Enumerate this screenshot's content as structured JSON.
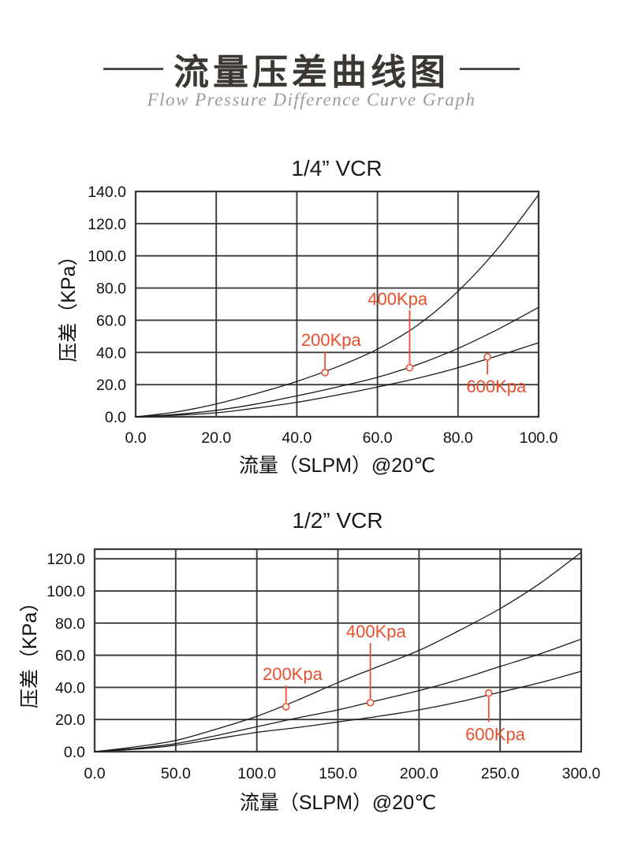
{
  "header": {
    "title": "流量压差曲线图",
    "subtitle": "Flow Pressure Difference Curve Graph",
    "title_color": "#3b3833",
    "subtitle_color": "#9b9b9b",
    "rule_color": "#4b4b4b"
  },
  "chart_data": [
    {
      "type": "line",
      "title": "1/4” VCR",
      "xlabel": "流量（SLPM）@20℃",
      "ylabel": "压差（KPa）",
      "xlim": [
        0,
        100
      ],
      "ylim": [
        0,
        140
      ],
      "xticks": [
        0,
        20,
        40,
        60,
        80,
        100
      ],
      "yticks": [
        0,
        20,
        40,
        60,
        80,
        100,
        120,
        140
      ],
      "tick_decimals": 1,
      "grid": true,
      "legend_position": "none",
      "line_color": "#1a1a1a",
      "grid_color": "#3b3b3b",
      "annotation_color": "#e8502d",
      "series": [
        {
          "name": "200Kpa",
          "x": [
            0,
            10,
            20,
            30,
            40,
            50,
            60,
            70,
            80,
            90,
            100
          ],
          "y": [
            0,
            3,
            8,
            14.5,
            22,
            31,
            42,
            57,
            78,
            105,
            138
          ]
        },
        {
          "name": "400Kpa",
          "x": [
            0,
            10,
            20,
            30,
            40,
            50,
            60,
            70,
            80,
            90,
            100
          ],
          "y": [
            0,
            1.5,
            4,
            8,
            13,
            18.5,
            24.5,
            32.5,
            42.5,
            54.5,
            68
          ]
        },
        {
          "name": "600Kpa",
          "x": [
            0,
            10,
            20,
            30,
            40,
            50,
            60,
            70,
            80,
            90,
            100
          ],
          "y": [
            0,
            1,
            2.5,
            5.5,
            9,
            13.5,
            18.5,
            24,
            30.5,
            38,
            46
          ]
        }
      ],
      "annotations": [
        {
          "text": "200Kpa",
          "marker": {
            "x": 47,
            "y": 27.5
          },
          "label": {
            "x": 48.5,
            "y": 48
          }
        },
        {
          "text": "400Kpa",
          "marker": {
            "x": 68,
            "y": 30.5
          },
          "label": {
            "x": 65,
            "y": 73.5
          }
        },
        {
          "text": "600Kpa",
          "marker": {
            "x": 87.3,
            "y": 37.2
          },
          "label": {
            "x": 89.5,
            "y": 19
          }
        }
      ]
    },
    {
      "type": "line",
      "title": "1/2” VCR",
      "xlabel": "流量（SLPM）@20℃",
      "ylabel": "压差（KPa）",
      "xlim": [
        0,
        300
      ],
      "ylim": [
        0,
        126
      ],
      "xticks": [
        0,
        50,
        100,
        150,
        200,
        250,
        300
      ],
      "yticks": [
        0,
        20,
        40,
        60,
        80,
        100,
        120
      ],
      "tick_decimals": 1,
      "grid": true,
      "legend_position": "none",
      "line_color": "#1a1a1a",
      "grid_color": "#3b3b3b",
      "annotation_color": "#e8502d",
      "series": [
        {
          "name": "200Kpa",
          "x": [
            0,
            25,
            50,
            75,
            100,
            125,
            150,
            175,
            200,
            225,
            250,
            275,
            300
          ],
          "y": [
            0,
            3,
            7,
            14,
            22,
            32,
            43,
            53,
            63,
            75.5,
            89,
            105,
            124
          ]
        },
        {
          "name": "400Kpa",
          "x": [
            0,
            25,
            50,
            75,
            100,
            125,
            150,
            175,
            200,
            225,
            250,
            275,
            300
          ],
          "y": [
            0,
            2,
            5,
            10,
            15.5,
            21,
            26,
            32,
            38,
            45,
            53,
            61,
            70
          ]
        },
        {
          "name": "600Kpa",
          "x": [
            0,
            25,
            50,
            75,
            100,
            125,
            150,
            175,
            200,
            225,
            250,
            275,
            300
          ],
          "y": [
            0,
            1.5,
            4,
            8,
            12,
            15,
            18.5,
            22,
            26,
            31,
            37,
            43,
            50
          ]
        }
      ],
      "annotations": [
        {
          "text": "200Kpa",
          "marker": {
            "x": 118,
            "y": 28
          },
          "label": {
            "x": 122,
            "y": 48.5
          }
        },
        {
          "text": "400Kpa",
          "marker": {
            "x": 170,
            "y": 30.5
          },
          "label": {
            "x": 173.5,
            "y": 75
          }
        },
        {
          "text": "600Kpa",
          "marker": {
            "x": 243,
            "y": 36.5
          },
          "label": {
            "x": 247,
            "y": 11
          }
        }
      ]
    }
  ]
}
